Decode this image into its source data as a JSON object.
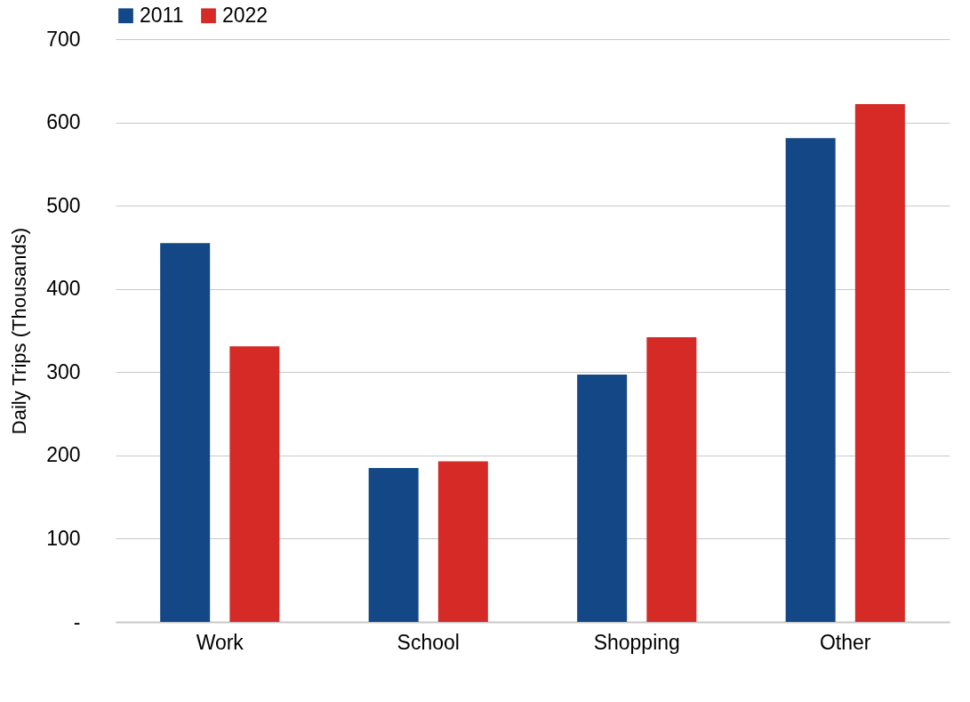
{
  "chart_data": {
    "type": "bar",
    "ylabel": "Daily Trips (Thousands)",
    "categories": [
      "Work",
      "School",
      "Shopping",
      "Other"
    ],
    "series": [
      {
        "name": "2011",
        "color": "#134785",
        "values": [
          455,
          185,
          297,
          581
        ]
      },
      {
        "name": "2022",
        "color": "#d62a27",
        "values": [
          331,
          193,
          342,
          622
        ]
      }
    ],
    "ylim": [
      0,
      700
    ],
    "yticks": [
      {
        "value": 0,
        "label": "-"
      },
      100,
      200,
      300,
      400,
      500,
      600,
      700
    ],
    "grid": "y",
    "legend": "top"
  }
}
